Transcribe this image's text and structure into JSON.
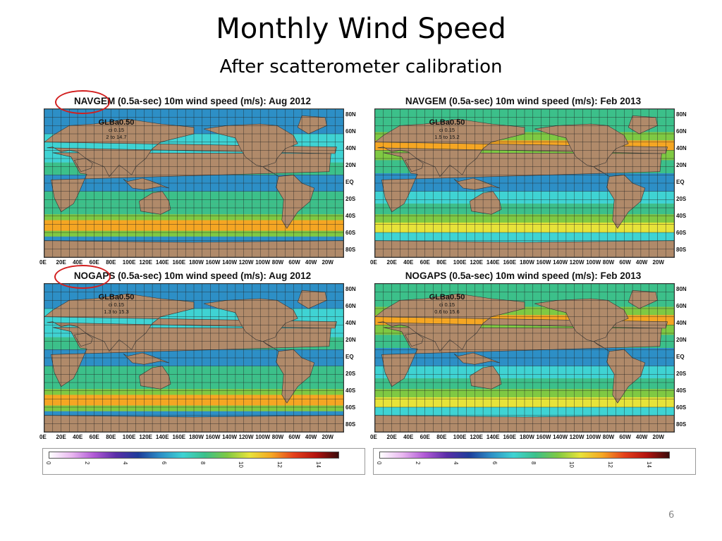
{
  "slide": {
    "title": "Monthly Wind Speed",
    "subtitle": "After scatterometer calibration",
    "page_number": "6"
  },
  "panels": [
    {
      "model": "NAVGEM",
      "title_rest": " (0.5a-sec) 10m wind speed (m/s): Aug 2012",
      "grid": "GLBa0.50",
      "ci": "ci 0.15",
      "range": "2 to 14.7",
      "highlighted": true,
      "season": "aug"
    },
    {
      "model": "NAVGEM",
      "title_rest": " (0.5a-sec) 10m wind speed (m/s): Feb 2013",
      "grid": "GLBa0.50",
      "ci": "ci 0.15",
      "range": "1.5 to 15.2",
      "highlighted": false,
      "season": "feb"
    },
    {
      "model": "NOGAPS",
      "title_rest": " (0.5a-sec) 10m wind speed (m/s): Aug 2012",
      "grid": "GLBa0.50",
      "ci": "ci 0.15",
      "range": "1.3 to 15.3",
      "highlighted": true,
      "season": "aug"
    },
    {
      "model": "NOGAPS",
      "title_rest": " (0.5a-sec) 10m wind speed (m/s): Feb 2013",
      "grid": "GLBa0.50",
      "ci": "ci 0.15",
      "range": "0.6 to 15.6",
      "highlighted": false,
      "season": "feb"
    }
  ],
  "lat_labels": [
    "80N",
    "60N",
    "40N",
    "20N",
    "EQ",
    "20S",
    "40S",
    "60S",
    "80S"
  ],
  "lon_labels": [
    "0E",
    "20E",
    "40E",
    "60E",
    "80E",
    "100E",
    "120E",
    "140E",
    "160E",
    "180W",
    "160W",
    "140W",
    "120W",
    "100W",
    "80W",
    "60W",
    "40W",
    "20W"
  ],
  "colorbar": {
    "ticks": [
      "0",
      "2",
      "4",
      "6",
      "8",
      "10",
      "12",
      "14"
    ],
    "min": 0,
    "max": 15,
    "colors": [
      "#ffffff",
      "#e9b8f0",
      "#b15ad6",
      "#5a2ea8",
      "#1e3c9a",
      "#2d8fc6",
      "#3fd3d3",
      "#3cc08a",
      "#7fc943",
      "#e7e33a",
      "#f5a623",
      "#e4401c",
      "#b3130f",
      "#3a0a0a"
    ]
  },
  "colors": {
    "land": "#b08a6a",
    "highlight_oval": "#d21f1f"
  }
}
